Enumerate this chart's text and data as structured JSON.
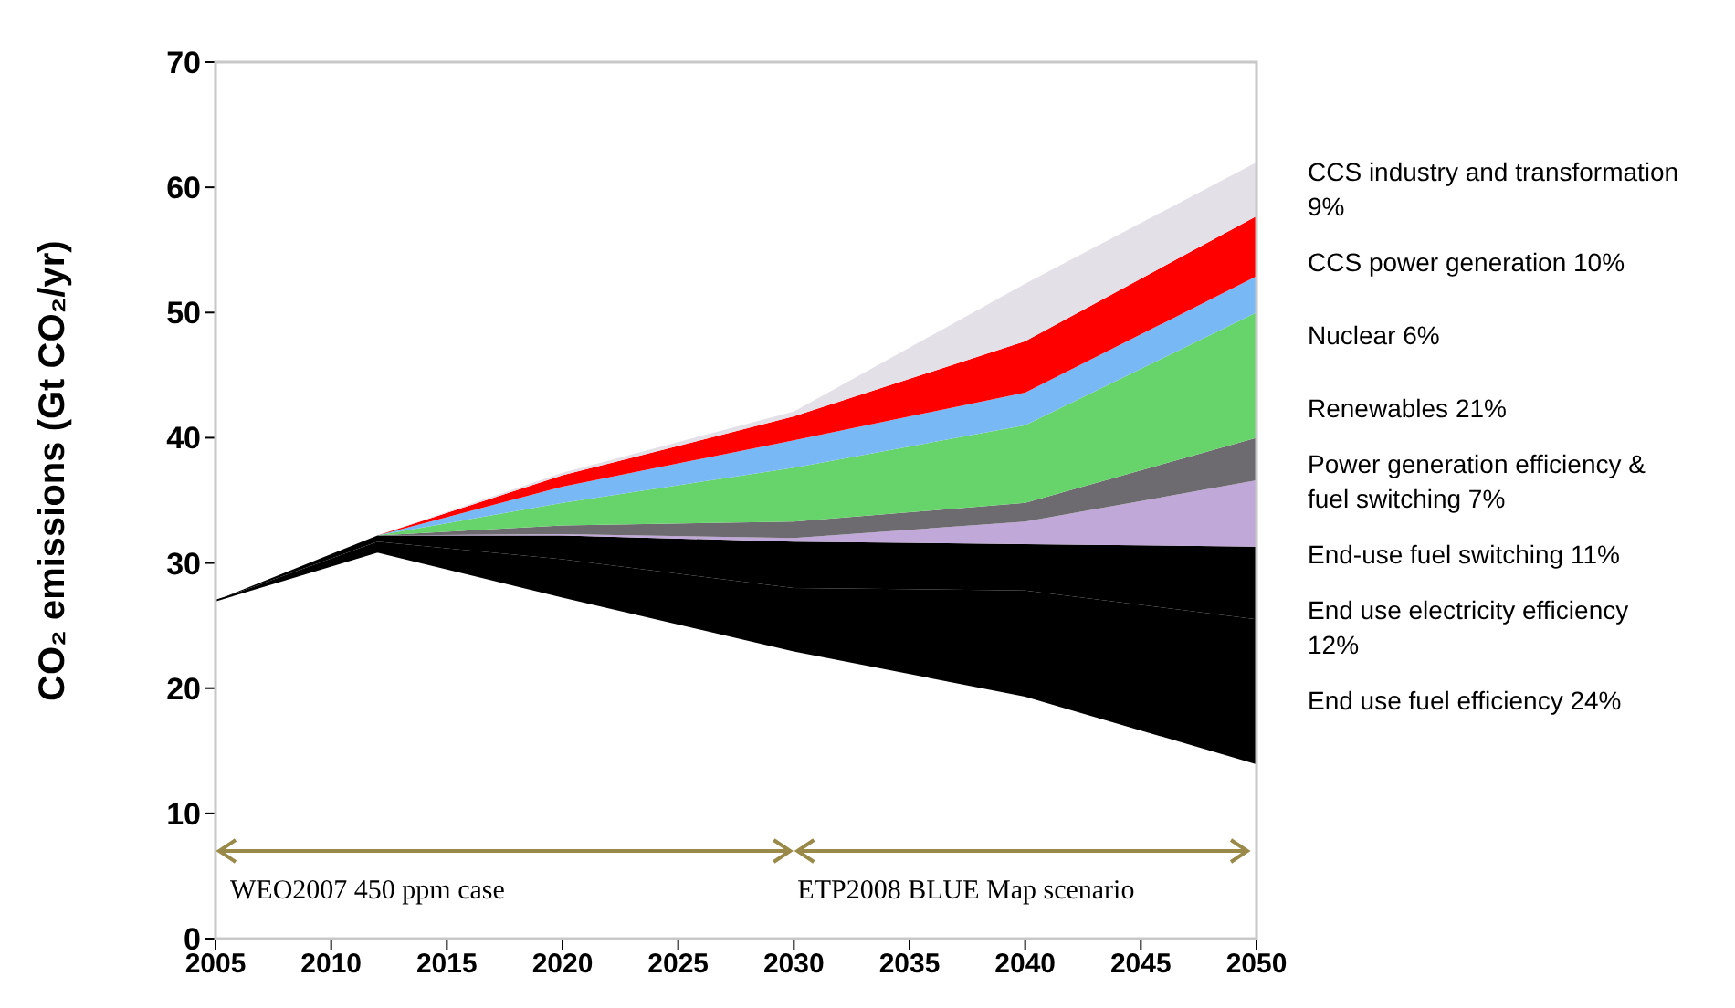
{
  "chart_data": {
    "type": "area",
    "stacked": true,
    "ylabel": "CO₂ emissions (Gt CO₂/yr)",
    "x": [
      2005,
      2012,
      2020,
      2030,
      2040,
      2050
    ],
    "xlim": [
      2005,
      2050
    ],
    "xticks": [
      2005,
      2010,
      2015,
      2020,
      2025,
      2030,
      2035,
      2040,
      2045,
      2050
    ],
    "ylim": [
      0,
      70
    ],
    "yticks": [
      0,
      10,
      20,
      30,
      40,
      50,
      60,
      70
    ],
    "grid": false,
    "series": [
      {
        "color": "#ffffff",
        "values": [
          27,
          30.9,
          27.3,
          23,
          19.4,
          14
        ]
      },
      {
        "name": "End use fuel efficiency 24%",
        "color": "#000000",
        "values": [
          0,
          0.8,
          3,
          5,
          8.4,
          11.5
        ]
      },
      {
        "name": "End use electricity efficiency 12%",
        "color": "#000000",
        "values": [
          0,
          0.5,
          1.9,
          3.7,
          3.7,
          5.8
        ]
      },
      {
        "name": "End-use fuel switching 11%",
        "color": "#c0a8d8",
        "values": [
          0,
          0,
          0.1,
          0.3,
          1.8,
          5.3
        ]
      },
      {
        "name": "Power generation efficiency & fuel switching 7%",
        "color": "#6d6a70",
        "values": [
          0,
          0,
          0.7,
          1.3,
          1.5,
          3.4
        ]
      },
      {
        "name": "Renewables 21%",
        "color": "#66d46a",
        "values": [
          0,
          0,
          1.8,
          4.3,
          6.2,
          10
        ]
      },
      {
        "name": "Nuclear 6%",
        "color": "#78b8f4",
        "values": [
          0,
          0,
          1.3,
          2.2,
          2.6,
          2.9
        ]
      },
      {
        "name": "CCS power generation 10%",
        "color": "#ff0000",
        "values": [
          0,
          0,
          0.9,
          1.9,
          4.1,
          4.8
        ]
      },
      {
        "name": "CCS industry and transformation 9%",
        "color": "#e4e0e8",
        "values": [
          0,
          0,
          0.2,
          0.4,
          4.6,
          4.3
        ]
      }
    ],
    "annotations": [
      "WEO2007 450 ppm case",
      "ETP2008 BLUE Map scenario"
    ]
  }
}
